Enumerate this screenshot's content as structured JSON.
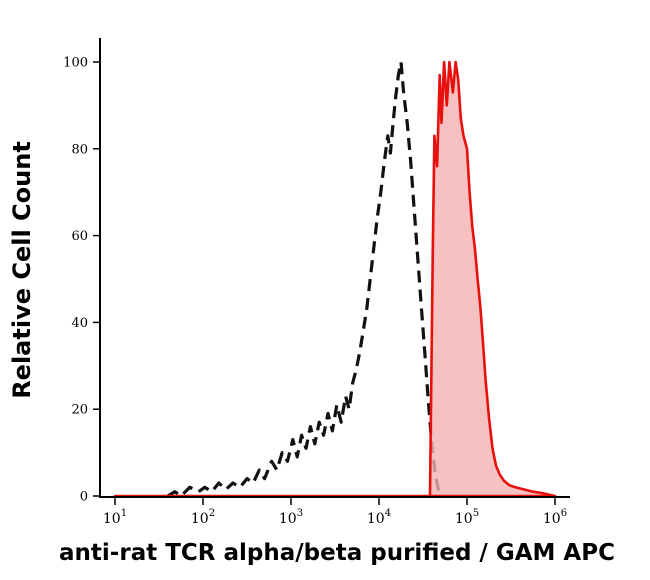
{
  "figure": {
    "title": "Flow cytometry single-parameter histogram"
  },
  "chart_data": {
    "type": "area",
    "title": "",
    "xlabel": "anti-rat TCR alpha/beta purified / GAM APC",
    "ylabel": "Relative Cell Count",
    "x_scale": "log10",
    "xlim_log10": [
      1,
      6
    ],
    "ylim": [
      0,
      100
    ],
    "x_ticks_exponents": [
      1,
      2,
      3,
      4,
      5,
      6
    ],
    "x_tick_base": "10",
    "y_ticks": [
      0,
      20,
      40,
      60,
      80,
      100
    ],
    "grid": false,
    "legend": "none",
    "colors": {
      "control_stroke": "#111111",
      "stained_stroke": "#e8100c",
      "stained_fill": "#f5b2b2",
      "axis": "#000000"
    },
    "series": [
      {
        "name": "control-black-dashed",
        "style": "dashed",
        "fill": false,
        "points": [
          [
            1.6,
            0
          ],
          [
            1.68,
            1
          ],
          [
            1.75,
            0
          ],
          [
            1.85,
            2
          ],
          [
            1.95,
            1
          ],
          [
            2.02,
            2
          ],
          [
            2.1,
            1
          ],
          [
            2.18,
            3
          ],
          [
            2.26,
            1.5
          ],
          [
            2.34,
            3
          ],
          [
            2.42,
            2
          ],
          [
            2.5,
            4
          ],
          [
            2.57,
            3
          ],
          [
            2.64,
            6
          ],
          [
            2.7,
            4
          ],
          [
            2.78,
            8
          ],
          [
            2.84,
            6
          ],
          [
            2.9,
            10
          ],
          [
            2.96,
            8
          ],
          [
            3.02,
            13
          ],
          [
            3.07,
            9
          ],
          [
            3.12,
            14
          ],
          [
            3.17,
            11
          ],
          [
            3.22,
            16
          ],
          [
            3.27,
            12
          ],
          [
            3.32,
            17
          ],
          [
            3.37,
            14
          ],
          [
            3.42,
            19
          ],
          [
            3.47,
            15
          ],
          [
            3.52,
            21
          ],
          [
            3.57,
            17
          ],
          [
            3.62,
            23
          ],
          [
            3.66,
            20
          ],
          [
            3.7,
            26
          ],
          [
            3.74,
            29
          ],
          [
            3.78,
            33
          ],
          [
            3.82,
            38
          ],
          [
            3.86,
            43
          ],
          [
            3.9,
            50
          ],
          [
            3.94,
            57
          ],
          [
            3.98,
            64
          ],
          [
            4.02,
            70
          ],
          [
            4.06,
            77
          ],
          [
            4.1,
            83
          ],
          [
            4.13,
            79
          ],
          [
            4.16,
            86
          ],
          [
            4.19,
            92
          ],
          [
            4.22,
            97
          ],
          [
            4.25,
            100
          ],
          [
            4.28,
            93
          ],
          [
            4.32,
            86
          ],
          [
            4.36,
            77
          ],
          [
            4.4,
            66
          ],
          [
            4.44,
            55
          ],
          [
            4.48,
            44
          ],
          [
            4.52,
            33
          ],
          [
            4.56,
            22
          ],
          [
            4.6,
            12
          ],
          [
            4.64,
            5
          ],
          [
            4.68,
            1
          ],
          [
            4.72,
            0
          ]
        ]
      },
      {
        "name": "stained-red-filled",
        "style": "solid",
        "fill": true,
        "points": [
          [
            1.0,
            0
          ],
          [
            4.58,
            0
          ],
          [
            4.61,
            55
          ],
          [
            4.63,
            83
          ],
          [
            4.66,
            76
          ],
          [
            4.69,
            97
          ],
          [
            4.71,
            86
          ],
          [
            4.74,
            100
          ],
          [
            4.77,
            90
          ],
          [
            4.8,
            100
          ],
          [
            4.84,
            93
          ],
          [
            4.87,
            100
          ],
          [
            4.9,
            96
          ],
          [
            4.93,
            87
          ],
          [
            4.96,
            83
          ],
          [
            5.0,
            80
          ],
          [
            5.03,
            70
          ],
          [
            5.06,
            62
          ],
          [
            5.09,
            57
          ],
          [
            5.12,
            50
          ],
          [
            5.15,
            44
          ],
          [
            5.18,
            36
          ],
          [
            5.21,
            27
          ],
          [
            5.25,
            18
          ],
          [
            5.29,
            11
          ],
          [
            5.33,
            7
          ],
          [
            5.37,
            5
          ],
          [
            5.42,
            3.5
          ],
          [
            5.48,
            2.5
          ],
          [
            5.55,
            2
          ],
          [
            5.65,
            1.5
          ],
          [
            5.75,
            1
          ],
          [
            5.85,
            0.7
          ],
          [
            6.0,
            0
          ]
        ]
      }
    ]
  }
}
